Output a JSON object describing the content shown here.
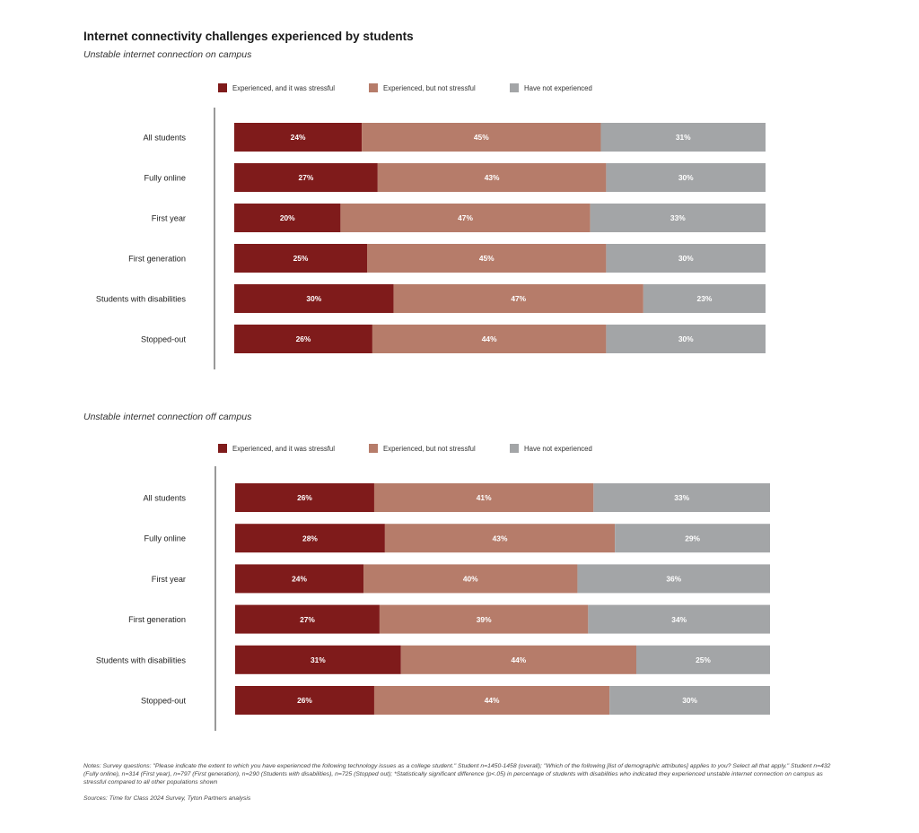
{
  "title": "Internet connectivity challenges experienced by students",
  "notes": "Notes: Survey questions: \"Please indicate the extent to which you have experienced the following technology issues as a college student.\" Student n=1450-1458 (overall); \"Which of the following [list of demographic attributes] applies to you? Select all that apply.\" Student n=432 (Fully online), n=314 (First year), n=797 (First generation), n=290 (Students with disabilities), n=725 (Stopped out); *Statistically significant difference (p<.05) in percentage of students with disabilities who indicated they experienced unstable internet connection on campus as stressful compared to all other populations shown",
  "sources": "Sources: Time for Class 2024 Survey, Tyton Partners analysis",
  "colors": {
    "stressful": "#7f1b1b",
    "not_stressful": "#b67c6a",
    "not_experienced": "#a3a5a7"
  },
  "chart_data": [
    {
      "type": "bar",
      "orientation": "horizontal",
      "stacked": true,
      "subtitle": "Unstable internet connection on campus",
      "legend_position": "top",
      "categories": [
        "All students",
        "Fully online",
        "First year",
        "First generation",
        "Students with disabilities",
        "Stopped-out"
      ],
      "series": [
        {
          "name": "Experienced, and it was stressful",
          "color": "#7f1b1b",
          "values": [
            24,
            27,
            20,
            25,
            30,
            26
          ]
        },
        {
          "name": "Experienced, but not stressful",
          "color": "#b67c6a",
          "values": [
            45,
            43,
            47,
            45,
            47,
            44
          ]
        },
        {
          "name": "Have not experienced",
          "color": "#a3a5a7",
          "values": [
            31,
            30,
            33,
            30,
            23,
            30
          ]
        }
      ],
      "value_suffix": "%",
      "xlim": [
        0,
        100
      ]
    },
    {
      "type": "bar",
      "orientation": "horizontal",
      "stacked": true,
      "subtitle": "Unstable internet connection off campus",
      "legend_position": "top",
      "categories": [
        "All students",
        "Fully online",
        "First year",
        "First generation",
        "Students with disabilities",
        "Stopped-out"
      ],
      "series": [
        {
          "name": "Experienced, and it was stressful",
          "color": "#7f1b1b",
          "values": [
            26,
            28,
            24,
            27,
            31,
            26
          ]
        },
        {
          "name": "Experienced, but not stressful",
          "color": "#b67c6a",
          "values": [
            41,
            43,
            40,
            39,
            44,
            44
          ]
        },
        {
          "name": "Have not experienced",
          "color": "#a3a5a7",
          "values": [
            33,
            29,
            36,
            34,
            25,
            30
          ]
        }
      ],
      "value_suffix": "%",
      "xlim": [
        0,
        100
      ]
    }
  ]
}
